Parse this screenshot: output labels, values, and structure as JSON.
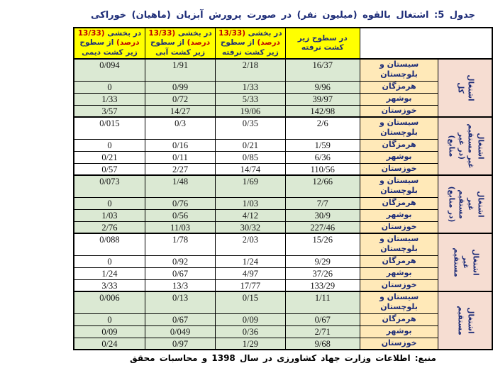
{
  "title": "جدول 5:  اشتغال بالقوه  (میلیون نفر)  در صورت پرورش آبزیان  (ماهیان) خوراکی",
  "source_note": "منبع:  اطلاعات وزارت جهاد کشاورزی در سال 1398 و محاسبات محقق",
  "colors": {
    "header_bg": "#ffff00",
    "header_text": "#1e2d78",
    "header_highlight": "#c00000",
    "green_row_bg": "#dbe9d3",
    "white_row_bg": "#ffffff",
    "province_bg": "#ffe9b8",
    "group_bg": "#f6ddd2",
    "border": "#000000",
    "title_text": "#1e2d78"
  },
  "table": {
    "columns": [
      {
        "p1": "در سطوح زیر کشت نرفته",
        "highlight": "",
        "p2": ""
      },
      {
        "p1": "در بخشی ",
        "highlight": "(13/33 درصد)",
        "p2": " از سطوح زیر کشت نرفته"
      },
      {
        "p1": "در بخشی ",
        "highlight": "(13/33 درصد)",
        "p2": " از سطوح زیر کشت آبی"
      },
      {
        "p1": "در بخشی ",
        "highlight": "(13/33 درصد)",
        "p2": " از سطوح زیر کشت دیمی"
      }
    ],
    "groups": [
      {
        "label": "اشتغال کل",
        "label_lines": [
          "اشتغال",
          "کل"
        ],
        "row_bg": "#dbe9d3",
        "rows": [
          {
            "province": "سیستان و بلوچستان",
            "values": [
              "16/37",
              "2/18",
              "1/91",
              "0/094"
            ]
          },
          {
            "province": "هرمزگان",
            "values": [
              "9/96",
              "1/33",
              "0/99",
              "0"
            ]
          },
          {
            "province": "بوشهر",
            "values": [
              "39/97",
              "5/33",
              "0/72",
              "1/33"
            ]
          },
          {
            "province": "خوزستان",
            "values": [
              "142/98",
              "19/06",
              "14/27",
              "3/57"
            ]
          }
        ]
      },
      {
        "label": "اشتغال غیر مستقیم (در غیر منابع)",
        "label_lines": [
          "اشتغال",
          "غیر مستقیم",
          "(در غیر",
          "منابع)"
        ],
        "row_bg": "#ffffff",
        "rows": [
          {
            "province": "سیستان و بلوچستان",
            "values": [
              "2/6",
              "0/35",
              "0/3",
              "0/015"
            ]
          },
          {
            "province": "هرمزگان",
            "values": [
              "1/59",
              "0/21",
              "0/16",
              "0"
            ]
          },
          {
            "province": "بوشهر",
            "values": [
              "6/36",
              "0/85",
              "0/11",
              "0/21"
            ]
          },
          {
            "province": "خوزستان",
            "values": [
              "110/56",
              "14/74",
              "2/27",
              "0/57"
            ]
          }
        ]
      },
      {
        "label": "اشتغال غیر مستقیم (در منابع)",
        "label_lines": [
          "اشتغال",
          "غیر",
          "مستقیم",
          "(در منابع)"
        ],
        "row_bg": "#dbe9d3",
        "rows": [
          {
            "province": "سیستان و بلوچستان",
            "values": [
              "12/66",
              "1/69",
              "1/48",
              "0/073"
            ]
          },
          {
            "province": "هرمزگان",
            "values": [
              "7/7",
              "1/03",
              "0/76",
              "0"
            ]
          },
          {
            "province": "بوشهر",
            "values": [
              "30/9",
              "4/12",
              "0/56",
              "1/03"
            ]
          },
          {
            "province": "خوزستان",
            "values": [
              "227/46",
              "30/32",
              "11/03",
              "2/76"
            ]
          }
        ]
      },
      {
        "label": "اشتغال غیر مستقیم",
        "label_lines": [
          "اشتغال",
          "غیر",
          "مستقیم"
        ],
        "row_bg": "#ffffff",
        "rows": [
          {
            "province": "سیستان و بلوچستان",
            "values": [
              "15/26",
              "2/03",
              "1/78",
              "0/088"
            ]
          },
          {
            "province": "هرمزگان",
            "values": [
              "9/29",
              "1/24",
              "0/92",
              "0"
            ]
          },
          {
            "province": "بوشهر",
            "values": [
              "37/26",
              "4/97",
              "0/67",
              "1/24"
            ]
          },
          {
            "province": "خوزستان",
            "values": [
              "133/29",
              "17/77",
              "13/3",
              "3/33"
            ]
          }
        ]
      },
      {
        "label": "اشتغال مستقیم",
        "label_lines": [
          "اشتغال",
          "مستقیم"
        ],
        "row_bg": "#dbe9d3",
        "rows": [
          {
            "province": "سیستان و بلوچستان",
            "values": [
              "1/11",
              "0/15",
              "0/13",
              "0/006"
            ]
          },
          {
            "province": "هرمزگان",
            "values": [
              "0/67",
              "0/09",
              "0/67",
              "0"
            ]
          },
          {
            "province": "بوشهر",
            "values": [
              "2/71",
              "0/36",
              "0/049",
              "0/09"
            ]
          },
          {
            "province": "خوزستان",
            "values": [
              "9/68",
              "1/29",
              "0/97",
              "0/24"
            ]
          }
        ]
      }
    ]
  }
}
